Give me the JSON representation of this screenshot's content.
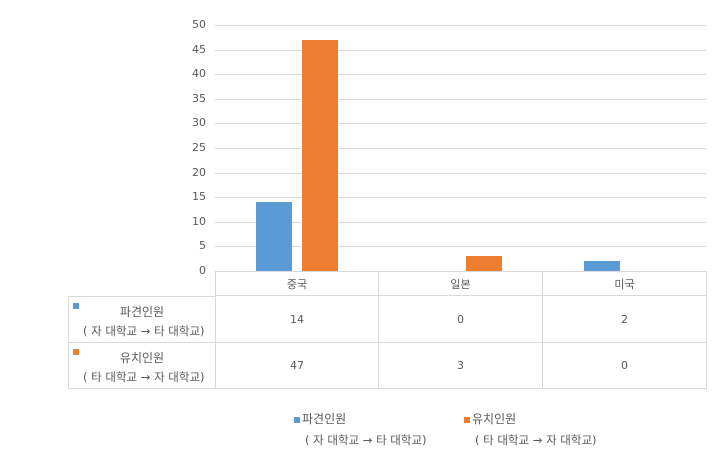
{
  "chart_data": {
    "type": "bar",
    "title": "",
    "xlabel": "",
    "ylabel": "",
    "categories": [
      "중국",
      "일본",
      "미국"
    ],
    "series": [
      {
        "name": "파견인원 ( 자 대학교 → 타 대학교)",
        "color": "#5b9bd5",
        "values": [
          14,
          0,
          2
        ]
      },
      {
        "name": "유치인원 ( 타 대학교 → 자 대학교)",
        "color": "#ed7d31",
        "values": [
          47,
          3,
          0
        ]
      }
    ],
    "ylim": [
      0,
      50
    ],
    "yticks": [
      "0",
      "5",
      "10",
      "15",
      "20",
      "25",
      "30",
      "35",
      "40",
      "45",
      "50"
    ],
    "grid": true,
    "legend_position": "bottom",
    "data_table": true
  },
  "yaxis": {
    "ticks": [
      "50",
      "45",
      "40",
      "35",
      "30",
      "25",
      "20",
      "15",
      "10",
      "5",
      "0"
    ]
  },
  "table": {
    "headers": [
      "중국",
      "일본",
      "미국"
    ],
    "rows": [
      {
        "label": "파견인원",
        "sublabel": "( 자 대학교 → 타 대학교)",
        "color": "#5b9bd5",
        "values": [
          "14",
          "0",
          "2"
        ]
      },
      {
        "label": "유치인원",
        "sublabel": "( 타 대학교 → 자 대학교)",
        "color": "#ed7d31",
        "values": [
          "47",
          "3",
          "0"
        ]
      }
    ]
  },
  "legend": [
    {
      "label": "파견인원",
      "sublabel": "( 자 대학교 → 타 대학교)",
      "color": "#5b9bd5"
    },
    {
      "label": "유치인원",
      "sublabel": "( 타 대학교 → 자 대학교)",
      "color": "#ed7d31"
    }
  ]
}
